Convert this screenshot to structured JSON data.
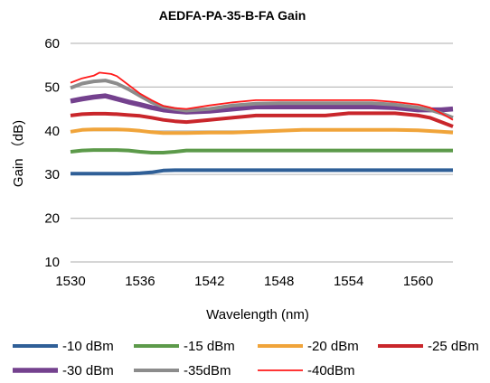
{
  "chart_data": {
    "type": "line",
    "title": "AEDFA-PA-35-B-FA Gain",
    "xlabel": "Wavelength (nm)",
    "ylabel": "Gain （dB)",
    "xlim": [
      1530,
      1563
    ],
    "ylim": [
      10,
      60
    ],
    "x_ticks": [
      "1530",
      "1536",
      "1542",
      "1548",
      "1554",
      "1560"
    ],
    "y_ticks": [
      "60",
      "50",
      "40",
      "30",
      "20",
      "10"
    ],
    "grid": true,
    "legend_position": "bottom",
    "series": [
      {
        "name": "-10 dBm",
        "color": "#2f5f97",
        "width": 4,
        "points": [
          [
            1530,
            30.2
          ],
          [
            1531,
            30.2
          ],
          [
            1532,
            30.2
          ],
          [
            1533,
            30.2
          ],
          [
            1534,
            30.2
          ],
          [
            1535,
            30.2
          ],
          [
            1536,
            30.3
          ],
          [
            1537,
            30.5
          ],
          [
            1538,
            30.9
          ],
          [
            1539,
            31
          ],
          [
            1540,
            31
          ],
          [
            1542,
            31
          ],
          [
            1544,
            31
          ],
          [
            1546,
            31
          ],
          [
            1548,
            31
          ],
          [
            1550,
            31
          ],
          [
            1552,
            31
          ],
          [
            1554,
            31
          ],
          [
            1556,
            31
          ],
          [
            1558,
            31
          ],
          [
            1560,
            31
          ],
          [
            1562,
            31
          ],
          [
            1563,
            31
          ]
        ]
      },
      {
        "name": "-15 dBm",
        "color": "#5c9a4a",
        "width": 4,
        "points": [
          [
            1530,
            35.2
          ],
          [
            1531,
            35.5
          ],
          [
            1532,
            35.6
          ],
          [
            1533,
            35.6
          ],
          [
            1534,
            35.6
          ],
          [
            1535,
            35.5
          ],
          [
            1536,
            35.2
          ],
          [
            1537,
            35
          ],
          [
            1538,
            35
          ],
          [
            1539,
            35.2
          ],
          [
            1540,
            35.5
          ],
          [
            1542,
            35.5
          ],
          [
            1544,
            35.5
          ],
          [
            1546,
            35.5
          ],
          [
            1548,
            35.5
          ],
          [
            1550,
            35.5
          ],
          [
            1552,
            35.5
          ],
          [
            1554,
            35.5
          ],
          [
            1556,
            35.5
          ],
          [
            1558,
            35.5
          ],
          [
            1560,
            35.5
          ],
          [
            1562,
            35.5
          ],
          [
            1563,
            35.5
          ]
        ]
      },
      {
        "name": "-20 dBm",
        "color": "#f0a43a",
        "width": 4,
        "points": [
          [
            1530,
            39.8
          ],
          [
            1531,
            40.2
          ],
          [
            1532,
            40.3
          ],
          [
            1533,
            40.3
          ],
          [
            1534,
            40.3
          ],
          [
            1535,
            40.2
          ],
          [
            1536,
            40
          ],
          [
            1537,
            39.7
          ],
          [
            1538,
            39.5
          ],
          [
            1540,
            39.5
          ],
          [
            1542,
            39.6
          ],
          [
            1544,
            39.6
          ],
          [
            1546,
            39.8
          ],
          [
            1548,
            40
          ],
          [
            1550,
            40.2
          ],
          [
            1552,
            40.2
          ],
          [
            1554,
            40.2
          ],
          [
            1556,
            40.2
          ],
          [
            1558,
            40.2
          ],
          [
            1560,
            40.1
          ],
          [
            1562,
            39.8
          ],
          [
            1563,
            39.6
          ]
        ]
      },
      {
        "name": "-25 dBm",
        "color": "#c9262b",
        "width": 4,
        "points": [
          [
            1530,
            43.5
          ],
          [
            1531,
            43.8
          ],
          [
            1532,
            43.9
          ],
          [
            1533,
            43.9
          ],
          [
            1534,
            43.8
          ],
          [
            1535,
            43.6
          ],
          [
            1536,
            43.4
          ],
          [
            1537,
            43
          ],
          [
            1538,
            42.5
          ],
          [
            1539,
            42.2
          ],
          [
            1540,
            42
          ],
          [
            1542,
            42.5
          ],
          [
            1544,
            43
          ],
          [
            1546,
            43.5
          ],
          [
            1548,
            43.5
          ],
          [
            1550,
            43.5
          ],
          [
            1552,
            43.5
          ],
          [
            1554,
            44
          ],
          [
            1556,
            44
          ],
          [
            1558,
            44
          ],
          [
            1560,
            43.5
          ],
          [
            1561,
            43
          ],
          [
            1562,
            42
          ],
          [
            1563,
            41
          ]
        ]
      },
      {
        "name": "-30 dBm",
        "color": "#74418e",
        "width": 5.5,
        "points": [
          [
            1530,
            46.8
          ],
          [
            1531,
            47.3
          ],
          [
            1532,
            47.7
          ],
          [
            1533,
            48
          ],
          [
            1534,
            47.3
          ],
          [
            1535,
            46.6
          ],
          [
            1536,
            46
          ],
          [
            1537,
            45.3
          ],
          [
            1538,
            44.8
          ],
          [
            1539,
            44.5
          ],
          [
            1540,
            44.3
          ],
          [
            1542,
            44.5
          ],
          [
            1544,
            45
          ],
          [
            1546,
            45.5
          ],
          [
            1548,
            45.5
          ],
          [
            1550,
            45.5
          ],
          [
            1552,
            45.5
          ],
          [
            1554,
            45.5
          ],
          [
            1556,
            45.5
          ],
          [
            1558,
            45.3
          ],
          [
            1560,
            44.8
          ],
          [
            1562,
            44.8
          ],
          [
            1563,
            45
          ]
        ]
      },
      {
        "name": "-35dBm",
        "color": "#8c8c8c",
        "width": 4,
        "points": [
          [
            1530,
            49.8
          ],
          [
            1531,
            50.8
          ],
          [
            1532,
            51.3
          ],
          [
            1533,
            51.5
          ],
          [
            1534,
            50.8
          ],
          [
            1535,
            49.5
          ],
          [
            1536,
            48
          ],
          [
            1537,
            46.5
          ],
          [
            1538,
            45.5
          ],
          [
            1539,
            45
          ],
          [
            1540,
            44.6
          ],
          [
            1542,
            45
          ],
          [
            1544,
            45.8
          ],
          [
            1546,
            46.2
          ],
          [
            1548,
            46.3
          ],
          [
            1550,
            46.3
          ],
          [
            1552,
            46.3
          ],
          [
            1554,
            46.3
          ],
          [
            1556,
            46.3
          ],
          [
            1558,
            46
          ],
          [
            1560,
            45.3
          ],
          [
            1561,
            44.8
          ],
          [
            1562,
            44
          ],
          [
            1563,
            43
          ]
        ]
      },
      {
        "name": "-40dBm",
        "color": "#ff1a1a",
        "width": 1.8,
        "points": [
          [
            1530,
            51
          ],
          [
            1531,
            52
          ],
          [
            1532,
            52.6
          ],
          [
            1532.5,
            53.3
          ],
          [
            1533.5,
            53
          ],
          [
            1534,
            52.5
          ],
          [
            1535,
            50.5
          ],
          [
            1536,
            48.5
          ],
          [
            1537,
            47
          ],
          [
            1538,
            45.7
          ],
          [
            1539,
            45.2
          ],
          [
            1540,
            45
          ],
          [
            1542,
            45.8
          ],
          [
            1544,
            46.5
          ],
          [
            1546,
            47
          ],
          [
            1548,
            47
          ],
          [
            1550,
            47
          ],
          [
            1552,
            47
          ],
          [
            1554,
            47
          ],
          [
            1556,
            47
          ],
          [
            1558,
            46.6
          ],
          [
            1560,
            46
          ],
          [
            1561,
            45.3
          ],
          [
            1562,
            44
          ],
          [
            1563,
            42.5
          ]
        ]
      }
    ]
  }
}
